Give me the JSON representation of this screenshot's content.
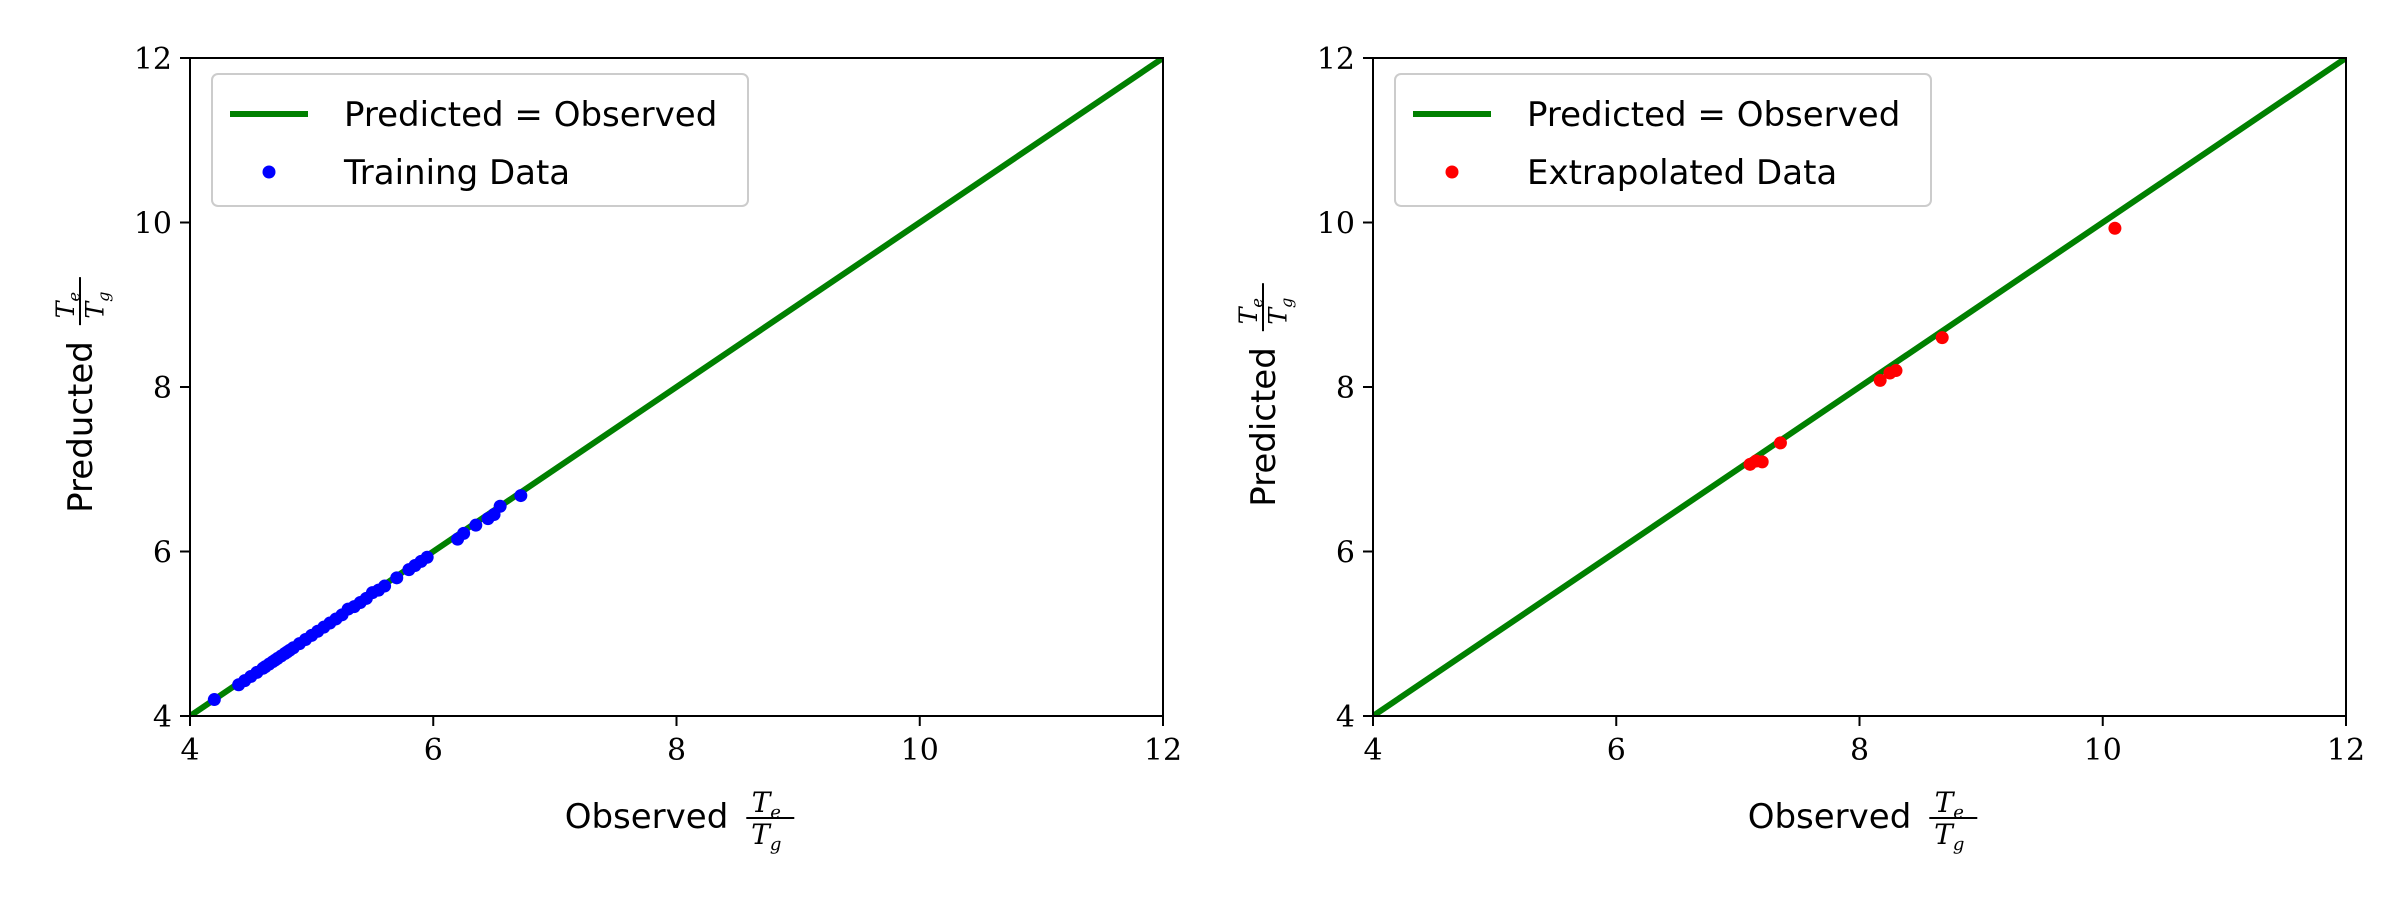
{
  "chart_data": [
    {
      "type": "scatter",
      "title": "",
      "xlabel": "Observed",
      "ylabel": "Preducted",
      "label_fraction": {
        "numerator": "T",
        "numerator_sub": "e",
        "denominator": "T",
        "denominator_sub": "g"
      },
      "xlim": [
        4,
        12
      ],
      "ylim": [
        4,
        12
      ],
      "xticks": [
        "4",
        "6",
        "8",
        "10",
        "12"
      ],
      "yticks": [
        "4",
        "6",
        "8",
        "10",
        "12"
      ],
      "grid": false,
      "legend_position": "top-left",
      "series": [
        {
          "name": "Predicted = Observed",
          "kind": "line",
          "color": "#008000",
          "x": [
            4,
            12
          ],
          "y": [
            4,
            12
          ]
        },
        {
          "name": "Training Data",
          "kind": "points",
          "color": "#0000ff",
          "x": [
            4.2,
            4.4,
            4.45,
            4.5,
            4.55,
            4.6,
            4.62,
            4.65,
            4.68,
            4.7,
            4.72,
            4.75,
            4.78,
            4.8,
            4.82,
            4.85,
            4.9,
            4.95,
            5.0,
            5.05,
            5.1,
            5.15,
            5.2,
            5.25,
            5.3,
            5.35,
            5.4,
            5.45,
            5.5,
            5.55,
            5.6,
            5.7,
            5.8,
            5.85,
            5.9,
            5.95,
            6.2,
            6.25,
            6.35,
            6.45,
            6.5,
            6.55,
            6.72
          ],
          "y": [
            4.2,
            4.38,
            4.43,
            4.48,
            4.53,
            4.58,
            4.6,
            4.63,
            4.66,
            4.68,
            4.7,
            4.73,
            4.76,
            4.78,
            4.8,
            4.83,
            4.88,
            4.93,
            4.98,
            5.03,
            5.08,
            5.13,
            5.18,
            5.23,
            5.3,
            5.33,
            5.38,
            5.43,
            5.5,
            5.53,
            5.58,
            5.68,
            5.78,
            5.83,
            5.88,
            5.93,
            6.15,
            6.22,
            6.32,
            6.4,
            6.45,
            6.55,
            6.68
          ]
        }
      ]
    },
    {
      "type": "scatter",
      "title": "",
      "xlabel": "Observed",
      "ylabel": "Predicted",
      "label_fraction": {
        "numerator": "T",
        "numerator_sub": "e",
        "denominator": "T",
        "denominator_sub": "g"
      },
      "xlim": [
        4,
        12
      ],
      "ylim": [
        4,
        12
      ],
      "xticks": [
        "4",
        "6",
        "8",
        "10",
        "12"
      ],
      "yticks": [
        "4",
        "6",
        "8",
        "10",
        "12"
      ],
      "grid": false,
      "legend_position": "top-left",
      "series": [
        {
          "name": "Predicted = Observed",
          "kind": "line",
          "color": "#008000",
          "x": [
            4,
            12
          ],
          "y": [
            4,
            12
          ]
        },
        {
          "name": "Extrapolated Data",
          "kind": "points",
          "color": "#ff0000",
          "x": [
            7.1,
            7.15,
            7.2,
            7.35,
            8.17,
            8.25,
            8.3,
            8.68,
            10.1
          ],
          "y": [
            7.06,
            7.1,
            7.09,
            7.32,
            8.08,
            8.17,
            8.2,
            8.6,
            9.93
          ]
        }
      ]
    }
  ]
}
